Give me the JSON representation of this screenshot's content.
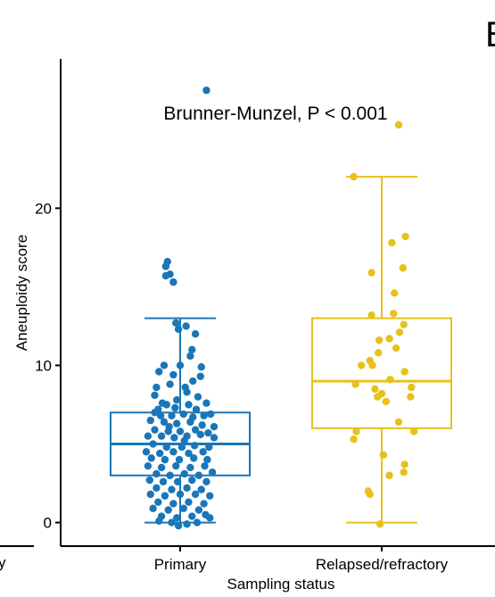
{
  "chart_data": {
    "type": "box",
    "panel_letter": "B",
    "stray_left_label": "y",
    "annotation": "Brunner-Munzel, P < 0.001",
    "xlabel": "Sampling status",
    "ylabel": "Aneuploidy score",
    "ylim": [
      -1.5,
      29.5
    ],
    "yticks": [
      0,
      10,
      20
    ],
    "ytick_labels": [
      "0",
      "10",
      "20"
    ],
    "categories": [
      "Primary",
      "Relapsed/refractory"
    ],
    "colors": {
      "Primary": "#1a76b8",
      "Relapsed/refractory": "#e6c11c"
    },
    "grid": false,
    "legend": "none",
    "boxes": [
      {
        "category": "Primary",
        "whisker_low": 0,
        "q1": 3,
        "median": 5,
        "q3": 7,
        "whisker_high": 13
      },
      {
        "category": "Relapsed/refractory",
        "whisker_low": 0,
        "q1": 6,
        "median": 9,
        "q3": 13,
        "whisker_high": 22
      }
    ],
    "points": {
      "Primary": [
        [
          0.31,
          27.5
        ],
        [
          -0.15,
          16.6
        ],
        [
          -0.17,
          16.3
        ],
        [
          -0.12,
          15.8
        ],
        [
          -0.17,
          15.7
        ],
        [
          -0.08,
          15.3
        ],
        [
          0.18,
          12.0
        ],
        [
          -0.05,
          12.7
        ],
        [
          -0.02,
          12.3
        ],
        [
          0.07,
          12.5
        ],
        [
          0.14,
          11.0
        ],
        [
          0.12,
          10.6
        ],
        [
          0.25,
          9.9
        ],
        [
          -0.19,
          10.0
        ],
        [
          -0.25,
          9.6
        ],
        [
          0.0,
          10.0
        ],
        [
          -0.08,
          9.4
        ],
        [
          0.24,
          9.3
        ],
        [
          0.15,
          9.0
        ],
        [
          -0.28,
          8.6
        ],
        [
          -0.12,
          8.8
        ],
        [
          0.06,
          8.6
        ],
        [
          0.08,
          8.3
        ],
        [
          -0.3,
          8.1
        ],
        [
          0.21,
          8.0
        ],
        [
          -0.21,
          7.6
        ],
        [
          0.31,
          7.6
        ],
        [
          -0.04,
          7.8
        ],
        [
          0.1,
          7.5
        ],
        [
          -0.16,
          7.5
        ],
        [
          -0.3,
          7.0
        ],
        [
          -0.23,
          6.8
        ],
        [
          -0.1,
          6.8
        ],
        [
          0.04,
          6.9
        ],
        [
          0.15,
          6.7
        ],
        [
          0.28,
          6.8
        ],
        [
          0.36,
          6.9
        ],
        [
          -0.35,
          6.5
        ],
        [
          -0.19,
          6.4
        ],
        [
          -0.04,
          6.3
        ],
        [
          0.12,
          6.4
        ],
        [
          0.26,
          6.2
        ],
        [
          0.4,
          6.1
        ],
        [
          -0.3,
          5.9
        ],
        [
          -0.14,
          5.8
        ],
        [
          0.0,
          5.8
        ],
        [
          0.18,
          5.9
        ],
        [
          0.33,
          5.7
        ],
        [
          -0.38,
          5.5
        ],
        [
          -0.22,
          5.5
        ],
        [
          -0.07,
          5.4
        ],
        [
          0.08,
          5.5
        ],
        [
          0.24,
          5.6
        ],
        [
          0.4,
          5.4
        ],
        [
          -0.32,
          5.0
        ],
        [
          -0.16,
          4.8
        ],
        [
          0.02,
          4.8
        ],
        [
          0.17,
          4.9
        ],
        [
          0.34,
          4.8
        ],
        [
          -0.4,
          4.5
        ],
        [
          -0.24,
          4.4
        ],
        [
          -0.08,
          4.5
        ],
        [
          0.1,
          4.4
        ],
        [
          0.27,
          4.5
        ],
        [
          -0.34,
          4.1
        ],
        [
          -0.18,
          4.0
        ],
        [
          -0.01,
          4.0
        ],
        [
          0.16,
          4.1
        ],
        [
          0.32,
          4.0
        ],
        [
          -0.38,
          3.6
        ],
        [
          -0.22,
          3.5
        ],
        [
          -0.05,
          3.6
        ],
        [
          0.12,
          3.5
        ],
        [
          0.29,
          3.6
        ],
        [
          -0.28,
          3.1
        ],
        [
          -0.12,
          3.0
        ],
        [
          0.05,
          3.1
        ],
        [
          0.22,
          3.0
        ],
        [
          0.38,
          3.2
        ],
        [
          -0.36,
          2.7
        ],
        [
          -0.2,
          2.6
        ],
        [
          -0.03,
          2.6
        ],
        [
          0.14,
          2.7
        ],
        [
          0.31,
          2.6
        ],
        [
          -0.28,
          2.2
        ],
        [
          -0.1,
          2.1
        ],
        [
          0.08,
          2.2
        ],
        [
          0.25,
          2.1
        ],
        [
          -0.35,
          1.8
        ],
        [
          -0.18,
          1.7
        ],
        [
          0.0,
          1.8
        ],
        [
          0.18,
          1.8
        ],
        [
          0.35,
          1.7
        ],
        [
          -0.26,
          1.3
        ],
        [
          -0.08,
          1.2
        ],
        [
          0.1,
          1.3
        ],
        [
          0.28,
          1.2
        ],
        [
          -0.32,
          0.9
        ],
        [
          -0.14,
          0.8
        ],
        [
          0.04,
          0.9
        ],
        [
          0.22,
          0.8
        ],
        [
          -0.22,
          0.4
        ],
        [
          -0.04,
          0.3
        ],
        [
          0.14,
          0.4
        ],
        [
          0.3,
          0.5
        ],
        [
          -0.1,
          0.0
        ],
        [
          0.08,
          -0.1
        ],
        [
          -0.02,
          -0.2
        ],
        [
          0.2,
          0.0
        ],
        [
          -0.25,
          0.1
        ],
        [
          0.35,
          0.3
        ],
        [
          -0.06,
          7.3
        ],
        [
          0.19,
          7.2
        ],
        [
          -0.26,
          7.2
        ],
        [
          0.05,
          5.2
        ],
        [
          -0.13,
          6.1
        ]
      ],
      "Relapsed/refractory": [
        [
          0.2,
          25.3
        ],
        [
          -0.33,
          22.0
        ],
        [
          0.28,
          18.2
        ],
        [
          0.12,
          17.8
        ],
        [
          0.25,
          16.2
        ],
        [
          -0.12,
          15.9
        ],
        [
          0.15,
          14.6
        ],
        [
          0.14,
          13.3
        ],
        [
          -0.12,
          13.2
        ],
        [
          0.26,
          12.6
        ],
        [
          0.21,
          12.1
        ],
        [
          0.09,
          11.7
        ],
        [
          -0.03,
          11.6
        ],
        [
          0.17,
          11.1
        ],
        [
          -0.04,
          10.8
        ],
        [
          -0.14,
          10.3
        ],
        [
          -0.24,
          10.0
        ],
        [
          -0.11,
          10.0
        ],
        [
          0.27,
          9.6
        ],
        [
          0.1,
          9.1
        ],
        [
          -0.31,
          8.8
        ],
        [
          0.35,
          8.6
        ],
        [
          -0.08,
          8.5
        ],
        [
          0.0,
          8.2
        ],
        [
          -0.05,
          8.0
        ],
        [
          0.34,
          8.0
        ],
        [
          0.05,
          7.7
        ],
        [
          0.2,
          6.4
        ],
        [
          -0.3,
          5.8
        ],
        [
          0.38,
          5.8
        ],
        [
          -0.33,
          5.3
        ],
        [
          0.02,
          4.3
        ],
        [
          0.27,
          3.7
        ],
        [
          0.26,
          3.2
        ],
        [
          0.09,
          3.0
        ],
        [
          -0.16,
          2.0
        ],
        [
          -0.14,
          1.8
        ],
        [
          -0.02,
          -0.1
        ]
      ]
    }
  }
}
